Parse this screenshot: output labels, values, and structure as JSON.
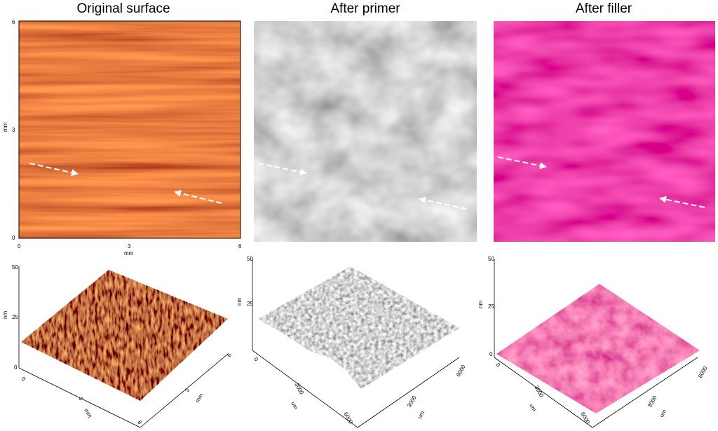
{
  "panels": [
    {
      "title": "Original surface",
      "map": {
        "y_label": "mm",
        "y_ticks": [
          "6",
          "3",
          "0"
        ],
        "x_ticks": [
          "0",
          "3",
          "6"
        ],
        "x_label": "mm"
      },
      "surface": {
        "z_label": "nm",
        "z_ticks": [
          "50",
          "25",
          "0"
        ],
        "x_ticks": [
          "0",
          "3",
          "6"
        ],
        "x_label": "mm",
        "y_ticks": [
          "3",
          "6"
        ],
        "y_label": "mm"
      }
    },
    {
      "title": "After primer",
      "surface": {
        "z_label": "nm",
        "z_ticks": [
          "50",
          "25"
        ],
        "x_ticks": [
          "0",
          "3000",
          "6000"
        ],
        "x_label": "um",
        "y_ticks": [
          "3000",
          "6000"
        ],
        "y_label": "um"
      }
    },
    {
      "title": "After filler",
      "surface": {
        "z_label": "nm",
        "z_ticks": [
          "50",
          "25",
          "0"
        ],
        "x_ticks": [
          "0",
          "3000",
          "6000"
        ],
        "x_label": "um",
        "y_ticks": [
          "3000",
          "6000"
        ],
        "y_label": "um"
      }
    }
  ]
}
